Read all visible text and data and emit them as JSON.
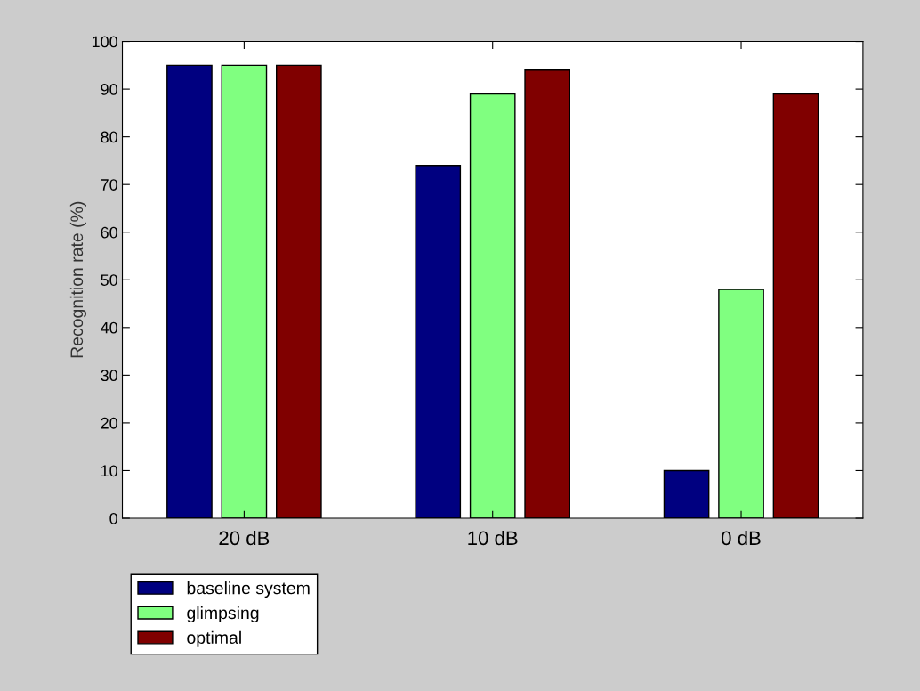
{
  "chart_data": {
    "type": "bar",
    "ylabel": "Recognition rate (%)",
    "categories": [
      "20 dB",
      "10 dB",
      "0 dB"
    ],
    "series": [
      {
        "name": "baseline system",
        "color": "#000080",
        "values": [
          95,
          74,
          10
        ]
      },
      {
        "name": "glimpsing",
        "color": "#80ff80",
        "values": [
          95,
          89,
          48
        ]
      },
      {
        "name": "optimal",
        "color": "#800000",
        "values": [
          95,
          94,
          89
        ]
      }
    ],
    "ylim": [
      0,
      100
    ],
    "yticks": [
      0,
      10,
      20,
      30,
      40,
      50,
      60,
      70,
      80,
      90,
      100
    ],
    "grid": false,
    "legend": "bottom left"
  }
}
